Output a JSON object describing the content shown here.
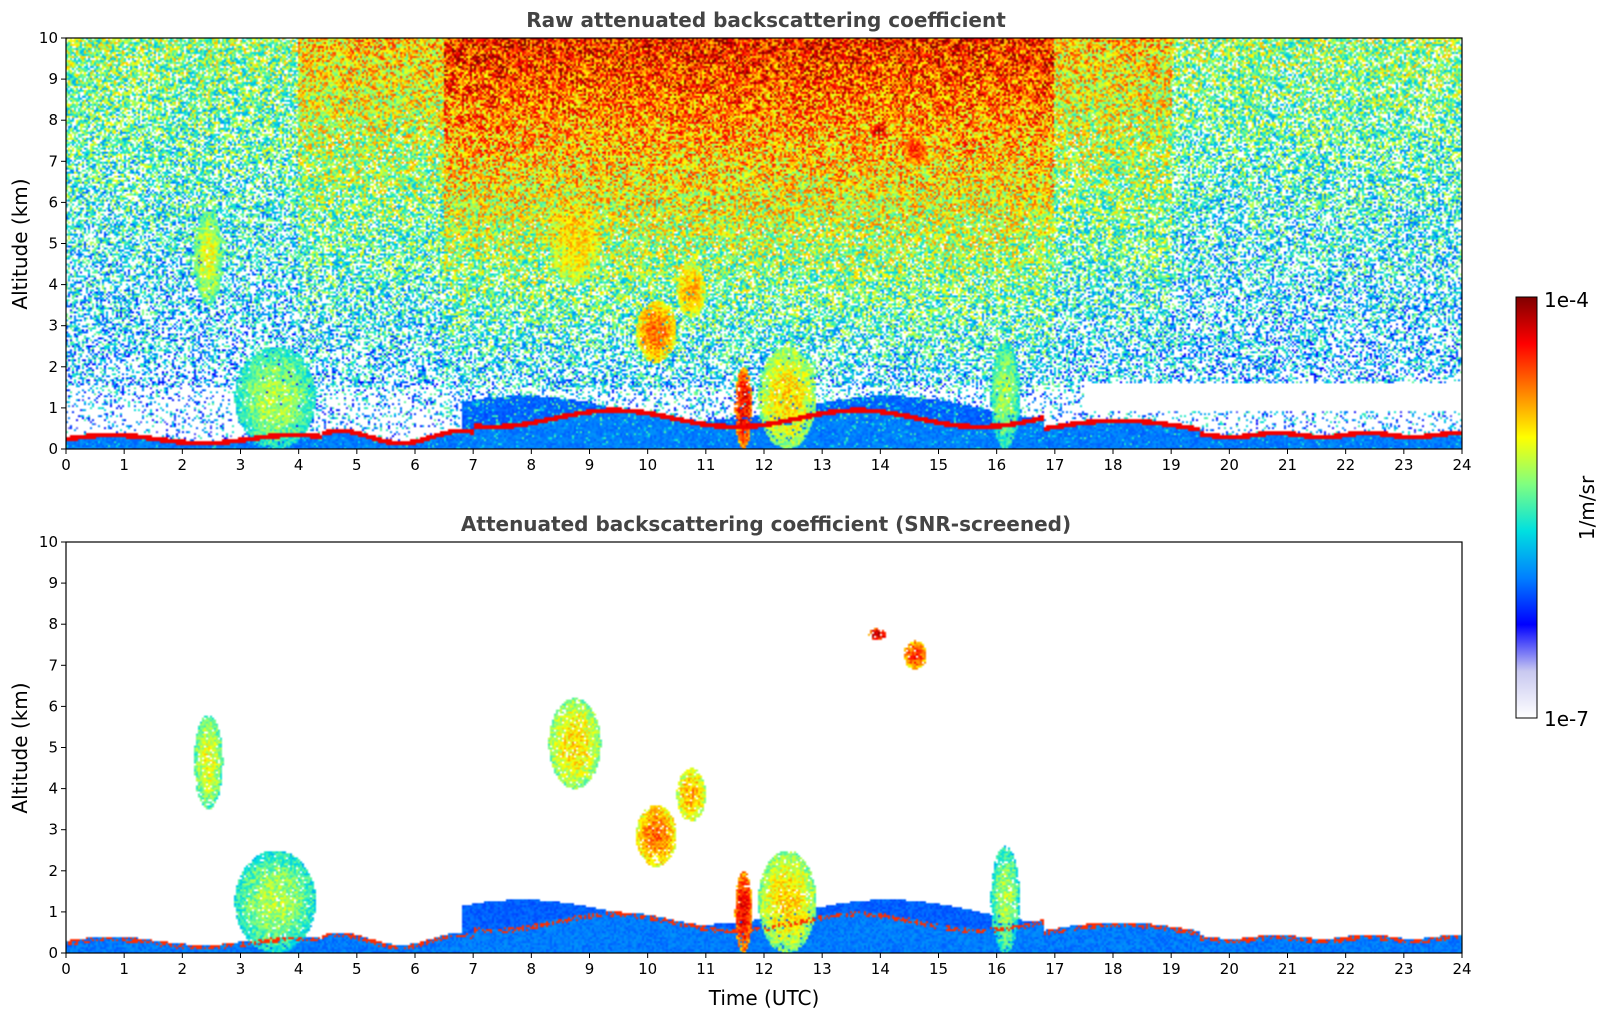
{
  "chart_data": [
    {
      "type": "heatmap",
      "title": "Raw attenuated backscattering coefficient",
      "xlabel": "",
      "ylabel": "Altitude (km)",
      "xlim": [
        0,
        24
      ],
      "ylim": [
        0,
        10
      ],
      "xticks": [
        0,
        1,
        2,
        3,
        4,
        5,
        6,
        7,
        8,
        9,
        10,
        11,
        12,
        13,
        14,
        15,
        16,
        17,
        18,
        19,
        20,
        21,
        22,
        23,
        24
      ],
      "yticks": [
        0,
        1,
        2,
        3,
        4,
        5,
        6,
        7,
        8,
        9,
        10
      ],
      "features": [
        {
          "kind": "boundary_layer",
          "x": [
            0,
            24
          ],
          "top_km": [
            0.3,
            0.9
          ]
        },
        {
          "kind": "cloud",
          "x": [
            2.2,
            2.7
          ],
          "y": [
            3.5,
            5.8
          ],
          "level": 0.65
        },
        {
          "kind": "cloud",
          "x": [
            2.9,
            4.3
          ],
          "y": [
            0,
            2.5
          ],
          "level": 0.6
        },
        {
          "kind": "cloud",
          "x": [
            8.3,
            9.2
          ],
          "y": [
            4.0,
            6.2
          ],
          "level": 0.7
        },
        {
          "kind": "cloud",
          "x": [
            9.8,
            10.5
          ],
          "y": [
            2.1,
            3.6
          ],
          "level": 0.8
        },
        {
          "kind": "cloud",
          "x": [
            10.5,
            11.0
          ],
          "y": [
            3.2,
            4.5
          ],
          "level": 0.75
        },
        {
          "kind": "cloud",
          "x": [
            11.5,
            11.8
          ],
          "y": [
            0,
            2.0
          ],
          "level": 0.9
        },
        {
          "kind": "cloud",
          "x": [
            11.9,
            12.9
          ],
          "y": [
            0,
            2.5
          ],
          "level": 0.7
        },
        {
          "kind": "cloud",
          "x": [
            13.8,
            14.1
          ],
          "y": [
            7.6,
            7.9
          ],
          "level": 0.95
        },
        {
          "kind": "cloud",
          "x": [
            14.4,
            14.8
          ],
          "y": [
            6.9,
            7.6
          ],
          "level": 0.85
        },
        {
          "kind": "cloud",
          "x": [
            15.9,
            16.4
          ],
          "y": [
            0,
            2.6
          ],
          "level": 0.6
        }
      ]
    },
    {
      "type": "heatmap",
      "title": "Attenuated backscattering coefficient (SNR-screened)",
      "xlabel": "Time (UTC)",
      "ylabel": "Altitude (km)",
      "xlim": [
        0,
        24
      ],
      "ylim": [
        0,
        10
      ],
      "xticks": [
        0,
        1,
        2,
        3,
        4,
        5,
        6,
        7,
        8,
        9,
        10,
        11,
        12,
        13,
        14,
        15,
        16,
        17,
        18,
        19,
        20,
        21,
        22,
        23,
        24
      ],
      "yticks": [
        0,
        1,
        2,
        3,
        4,
        5,
        6,
        7,
        8,
        9,
        10
      ],
      "features": "same cloud features as raw panel, background noise removed"
    }
  ],
  "colorbar": {
    "label": "1/m/sr",
    "max_label": "1e-4",
    "min_label": "1e-7",
    "colormap": [
      "#ffffff",
      "#c8c8f0",
      "#0000ff",
      "#0080ff",
      "#00e0e0",
      "#80ff80",
      "#ffff00",
      "#ff8000",
      "#ff0000",
      "#800000"
    ]
  },
  "figure_titles": {
    "top": "Raw attenuated backscattering coefficient",
    "bottom": "Attenuated backscattering coefficient (SNR-screened)"
  },
  "axes_labels": {
    "y_top": "Altitude (km)",
    "y_bottom": "Altitude (km)",
    "x_bottom": "Time (UTC)"
  }
}
